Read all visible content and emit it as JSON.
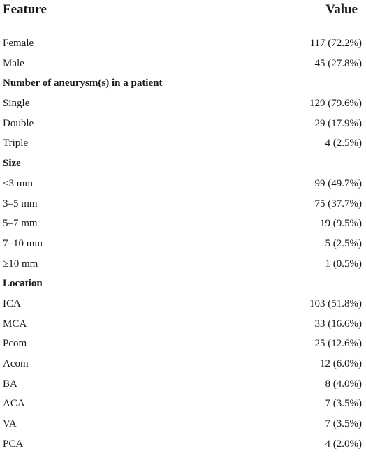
{
  "header": {
    "feature_label": "Feature",
    "value_label": "Value"
  },
  "rows": [
    {
      "feature": "Female",
      "value": "117 (72.2%)",
      "section": false
    },
    {
      "feature": "Male",
      "value": "45 (27.8%)",
      "section": false
    },
    {
      "feature": "Number of aneurysm(s) in a patient",
      "value": "",
      "section": true
    },
    {
      "feature": "Single",
      "value": "129 (79.6%)",
      "section": false
    },
    {
      "feature": "Double",
      "value": "29 (17.9%)",
      "section": false
    },
    {
      "feature": "Triple",
      "value": "4 (2.5%)",
      "section": false
    },
    {
      "feature": "Size",
      "value": "",
      "section": true
    },
    {
      "feature": "<3 mm",
      "value": "99 (49.7%)",
      "section": false
    },
    {
      "feature": "3–5 mm",
      "value": "75 (37.7%)",
      "section": false
    },
    {
      "feature": "5–7 mm",
      "value": "19 (9.5%)",
      "section": false
    },
    {
      "feature": "7–10 mm",
      "value": "5 (2.5%)",
      "section": false
    },
    {
      "feature": "≥10 mm",
      "value": "1 (0.5%)",
      "section": false
    },
    {
      "feature": "Location",
      "value": "",
      "section": true
    },
    {
      "feature": "ICA",
      "value": "103 (51.8%)",
      "section": false
    },
    {
      "feature": "MCA",
      "value": "33 (16.6%)",
      "section": false
    },
    {
      "feature": "Pcom",
      "value": "25 (12.6%)",
      "section": false
    },
    {
      "feature": "Acom",
      "value": "12 (6.0%)",
      "section": false
    },
    {
      "feature": "BA",
      "value": "8 (4.0%)",
      "section": false
    },
    {
      "feature": "ACA",
      "value": "7 (3.5%)",
      "section": false
    },
    {
      "feature": "VA",
      "value": "7 (3.5%)",
      "section": false
    },
    {
      "feature": "PCA",
      "value": "4 (2.0%)",
      "section": false
    }
  ]
}
